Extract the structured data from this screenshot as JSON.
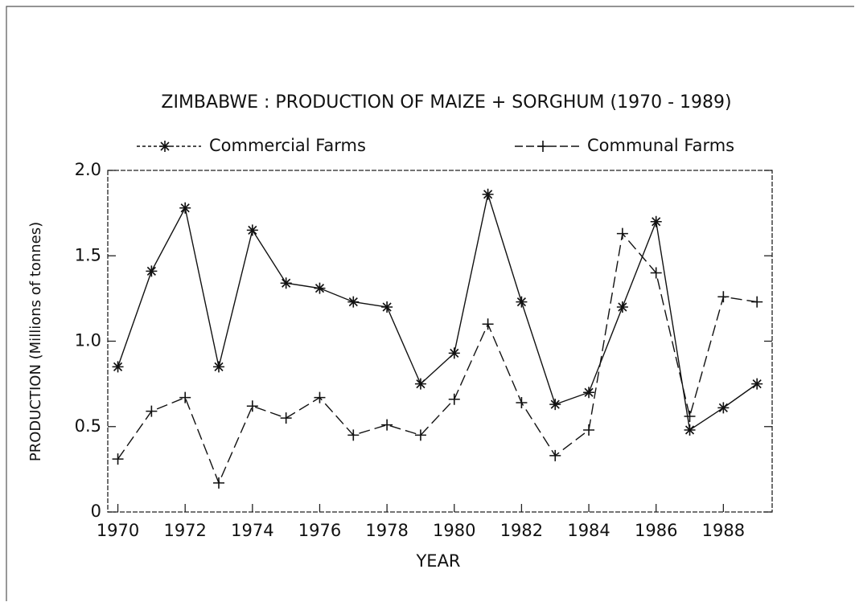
{
  "chart_data": {
    "type": "line",
    "title": "ZIMBABWE : PRODUCTION OF MAIZE + SORGHUM (1970 - 1989)",
    "x_label": "YEAR",
    "y_label": "PRODUCTION (Millions of tonnes)",
    "x": [
      1970,
      1971,
      1972,
      1973,
      1974,
      1975,
      1976,
      1977,
      1978,
      1979,
      1980,
      1981,
      1982,
      1983,
      1984,
      1985,
      1986,
      1987,
      1988,
      1989
    ],
    "series": [
      {
        "name": "Commercial Farms",
        "color": "#111111",
        "marker": "asterisk",
        "dash": "solid",
        "values": [
          0.85,
          1.41,
          1.78,
          0.85,
          1.65,
          1.34,
          1.31,
          1.23,
          1.2,
          0.75,
          0.93,
          1.86,
          1.23,
          0.63,
          0.7,
          1.2,
          1.7,
          0.48,
          0.61,
          0.75
        ]
      },
      {
        "name": "Communal Farms",
        "color": "#111111",
        "marker": "plus",
        "dash": "dashed",
        "values": [
          0.31,
          0.59,
          0.67,
          0.17,
          0.62,
          0.55,
          0.67,
          0.45,
          0.51,
          0.45,
          0.66,
          1.1,
          0.64,
          0.33,
          0.48,
          1.63,
          1.4,
          0.56,
          1.26,
          1.23
        ]
      }
    ],
    "xlim": [
      1969.7,
      1989.45
    ],
    "xticks": [
      1970,
      1972,
      1974,
      1976,
      1978,
      1980,
      1982,
      1984,
      1986,
      1988
    ],
    "ylim": [
      0,
      2
    ],
    "yticks": [
      0,
      0.5,
      {
        "value": 1,
        "label": "1.0"
      },
      1.5,
      {
        "value": 2,
        "label": "2.0"
      }
    ],
    "grid": false
  }
}
